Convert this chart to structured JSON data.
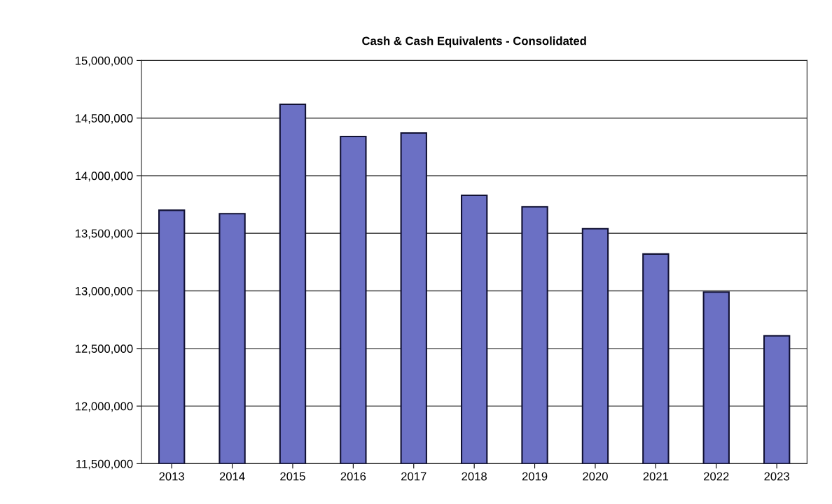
{
  "chart_data": {
    "type": "bar",
    "title": "Cash & Cash Equivalents - Consolidated",
    "categories": [
      "2013",
      "2014",
      "2015",
      "2016",
      "2017",
      "2018",
      "2019",
      "2020",
      "2021",
      "2022",
      "2023"
    ],
    "values": [
      13700000,
      13670000,
      14620000,
      14340000,
      14370000,
      13830000,
      13730000,
      13540000,
      13320000,
      12990000,
      12610000
    ],
    "color": "#6b70c4",
    "ylim": [
      11500000,
      15000000
    ],
    "yticks": [
      {
        "value": 11500000,
        "label": "11,500,000"
      },
      {
        "value": 12000000,
        "label": "12,000,000"
      },
      {
        "value": 12500000,
        "label": "12,500,000"
      },
      {
        "value": 13000000,
        "label": "13,000,000"
      },
      {
        "value": 13500000,
        "label": "13,500,000"
      },
      {
        "value": 14000000,
        "label": "14,000,000"
      },
      {
        "value": 14500000,
        "label": "14,500,000"
      },
      {
        "value": 15000000,
        "label": "15,000,000"
      }
    ],
    "grid": "y"
  }
}
